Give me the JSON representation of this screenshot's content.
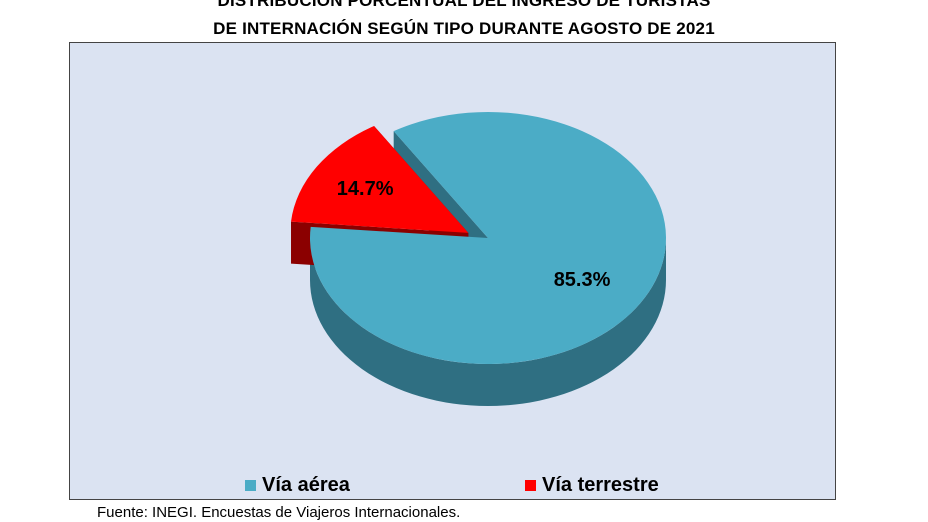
{
  "chart_data": {
    "type": "pie",
    "title": "DISTRIBUCIÓN PORCENTUAL DEL INGRESO DE TURISTAS",
    "subtitle": "DE INTERNACIÓN SEGÚN TIPO DURANTE AGOSTO DE 2021",
    "slices": [
      {
        "name": "Vía aérea",
        "value": 85.3,
        "label": "85.3%",
        "color": "#4bacc6",
        "side_color": "#2f6f82"
      },
      {
        "name": "Vía terrestre",
        "value": 14.7,
        "label": "14.7%",
        "color": "#ff0000",
        "side_color": "#8b0000"
      }
    ],
    "exploded": "Vía terrestre",
    "legend_position": "bottom",
    "source": "Fuente: INEGI. Encuestas de Viajeros Internacionales."
  },
  "colors": {
    "plot_background": "#dbe3f2"
  }
}
